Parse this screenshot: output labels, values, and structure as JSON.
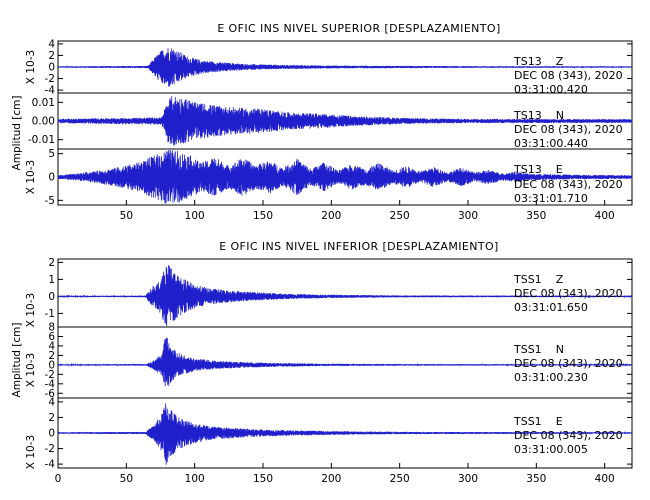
{
  "chart_data": [
    {
      "type": "line",
      "title": "E OFIC INS NIVEL SUPERIOR [DESPLAZAMIENTO]",
      "ylabel": "Amplitud [cm]",
      "xlim": [
        0,
        420
      ],
      "xticks": [
        50,
        100,
        150,
        200,
        250,
        300,
        350,
        400
      ],
      "grid": false,
      "series_color": "#1f1fcc",
      "panels": [
        {
          "station": "TS13",
          "component": "Z",
          "date": "DEC 08 (343), 2020",
          "time": "03:31:00.420",
          "scale_label": "X 10-3",
          "ylim": [
            -4.5,
            4.5
          ],
          "yticks": [
            4,
            2,
            0,
            -2,
            -4
          ],
          "ytick_labels": [
            "4",
            "2",
            "0",
            "-2",
            "-4"
          ],
          "envelope": {
            "x": [
              0,
              66,
              70,
              76,
              80,
              84,
              88,
              95,
              105,
              120,
              140,
              170,
              200,
              250,
              300,
              420
            ],
            "amp": [
              0.12,
              0.2,
              1.5,
              3.0,
              3.6,
              3.4,
              2.8,
              1.8,
              1.2,
              0.8,
              0.5,
              0.35,
              0.25,
              0.2,
              0.15,
              0.12
            ]
          }
        },
        {
          "station": "TS13",
          "component": "N",
          "date": "DEC 08 (343), 2020",
          "time": "03:31:00.440",
          "scale_label": "",
          "ylim": [
            -0.015,
            0.015
          ],
          "yticks": [
            0.01,
            0.0,
            -0.01
          ],
          "ytick_labels": [
            "0.01",
            "0.00",
            "-0.01"
          ],
          "envelope": {
            "x": [
              0,
              76,
              80,
              84,
              88,
              95,
              100,
              110,
              120,
              135,
              150,
              170,
              190,
              220,
              260,
              300,
              420
            ],
            "amp": [
              0.0012,
              0.002,
              0.011,
              0.014,
              0.013,
              0.012,
              0.01,
              0.009,
              0.008,
              0.007,
              0.0065,
              0.0045,
              0.004,
              0.0025,
              0.0015,
              0.0012,
              0.001
            ]
          }
        },
        {
          "station": "TS13",
          "component": "E",
          "date": "DEC 08 (343), 2020",
          "time": "03:31:01.710",
          "scale_label": "X 10-3",
          "ylim": [
            -6,
            6
          ],
          "yticks": [
            5,
            0,
            -5
          ],
          "ytick_labels": [
            "5",
            "0",
            "-5"
          ],
          "envelope": {
            "x": [
              0,
              15,
              30,
              45,
              60,
              70,
              80,
              88,
              95,
              105,
              115,
              125,
              135,
              145,
              155,
              165,
              175,
              185,
              195,
              205,
              215,
              225,
              235,
              245,
              255,
              265,
              275,
              285,
              295,
              305,
              315,
              325,
              335,
              345,
              360,
              380,
              420
            ],
            "amp": [
              0.4,
              0.8,
              1.4,
              2.2,
              3.2,
              4.6,
              6.0,
              5.6,
              5.0,
              3.0,
              4.4,
              2.4,
              4.2,
              2.6,
              3.6,
              2.0,
              4.0,
              1.8,
              3.2,
              1.4,
              2.8,
              1.8,
              3.0,
              1.4,
              2.4,
              1.2,
              2.2,
              1.0,
              2.0,
              1.0,
              1.6,
              0.8,
              1.2,
              0.7,
              0.6,
              0.5,
              0.4
            ]
          }
        }
      ]
    },
    {
      "type": "line",
      "title": "E OFIC INS NIVEL INFERIOR [DESPLAZAMIENTO]",
      "ylabel": "Amplitud [cm]",
      "xlim": [
        0,
        420
      ],
      "xticks": [
        0,
        50,
        100,
        150,
        200,
        250,
        300,
        350,
        400
      ],
      "grid": false,
      "series_color": "#1f1fcc",
      "panels": [
        {
          "station": "TSS1",
          "component": "Z",
          "date": "DEC 08 (343), 2020",
          "time": "03:31:01.650",
          "scale_label": "X 10-3",
          "ylim": [
            -1.8,
            2.2
          ],
          "yticks": [
            2,
            1,
            0,
            -1
          ],
          "ytick_labels": [
            "2",
            "1",
            "0",
            "-1"
          ],
          "envelope": {
            "x": [
              0,
              64,
              68,
              74,
              78,
              80,
              84,
              90,
              100,
              110,
              125,
              145,
              170,
              200,
              250,
              420
            ],
            "amp": [
              0.03,
              0.05,
              0.5,
              0.9,
              1.6,
              2.0,
              1.5,
              1.1,
              0.7,
              0.5,
              0.35,
              0.25,
              0.15,
              0.1,
              0.06,
              0.04
            ]
          }
        },
        {
          "station": "TSS1",
          "component": "N",
          "date": "DEC 08 (343), 2020",
          "time": "03:31:00.230",
          "scale_label": "X 10-3",
          "ylim": [
            -7,
            8
          ],
          "yticks": [
            8,
            6,
            4,
            2,
            0,
            -2,
            -4,
            -6
          ],
          "ytick_labels": [
            "8",
            "6",
            "4",
            "2",
            "0",
            "-2",
            "-4",
            "-6"
          ],
          "envelope": {
            "x": [
              0,
              65,
              70,
              76,
              79,
              82,
              86,
              92,
              100,
              115,
              135,
              160,
              200,
              250,
              420
            ],
            "amp": [
              0.12,
              0.2,
              1.0,
              2.4,
              6.5,
              4.0,
              3.0,
              2.0,
              1.4,
              0.9,
              0.6,
              0.4,
              0.25,
              0.18,
              0.12
            ]
          }
        },
        {
          "station": "TSS1",
          "component": "E",
          "date": "DEC 08 (343), 2020",
          "time": "03:31:00.005",
          "scale_label": "X 10-3",
          "ylim": [
            -4.5,
            4.5
          ],
          "yticks": [
            4,
            2,
            0,
            -2,
            -4
          ],
          "ytick_labels": [
            "4",
            "2",
            "0",
            "-2",
            "-4"
          ],
          "envelope": {
            "x": [
              0,
              64,
              70,
              76,
              79,
              82,
              86,
              92,
              100,
              112,
              125,
              145,
              170,
              200,
              250,
              420
            ],
            "amp": [
              0.1,
              0.15,
              1.0,
              2.5,
              4.2,
              3.4,
              2.4,
              1.8,
              1.3,
              0.9,
              0.7,
              0.5,
              0.35,
              0.25,
              0.15,
              0.1
            ]
          }
        }
      ]
    }
  ]
}
